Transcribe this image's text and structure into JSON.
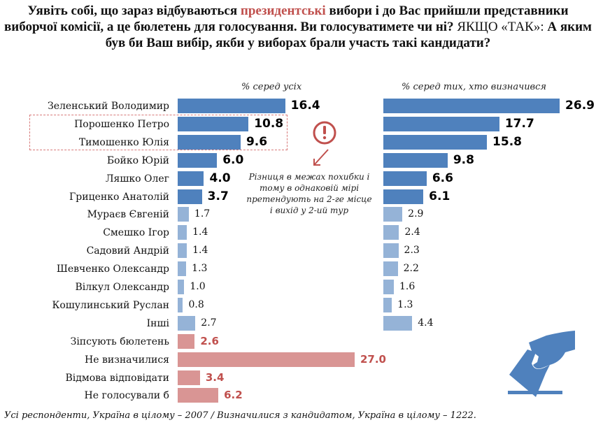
{
  "title": {
    "part1": "Уявіть собі, що зараз відбуваються ",
    "accent": "президентські",
    "part2": " вибори і до Вас прийшли представники виборчої комісії, а це бюлетень для голосування. Ви голосуватимете чи ні? ",
    "plain": "ЯКЩО «ТАК»:",
    "part3": " А яким був би Ваш вибір, якби у виборах брали участь такі кандидати?"
  },
  "annotation": {
    "note": "Різниця в межах похибки і тому в однаковій мірі претендують на 2-ге місце і вихід у 2-ий тур",
    "icon": "exclamation-circle-icon"
  },
  "footer": "Усі респонденти, Україна в цілому – 2007 / Визначилися з кандидатом, Україна в цілому – 1222.",
  "decor_icon": "ballot-box-hand-icon",
  "colors": {
    "leader": "#4f81bd",
    "minor": "#95b3d7",
    "other": "#d99594",
    "accent": "#c0504d"
  },
  "chart_data": [
    {
      "type": "bar",
      "orientation": "horizontal",
      "title": "% серед усіх",
      "xlim": [
        0,
        30
      ],
      "categories": [
        "Зеленський Володимир",
        "Порошенко Петро",
        "Тимошенко Юлія",
        "Бойко Юрій",
        "Ляшко Олег",
        "Гриценко Анатолій",
        "Мураєв Євгеній",
        "Смешко Ігор",
        "Садовий Андрій",
        "Шевченко Олександр",
        "Вілкул Олександр",
        "Кошулинський Руслан",
        "Інші",
        "Зіпсують бюлетень",
        "Не визначилися",
        "Відмова відповідати",
        "Не голосували б"
      ],
      "values": [
        16.4,
        10.8,
        9.6,
        6.0,
        4.0,
        3.7,
        1.7,
        1.4,
        1.4,
        1.3,
        1.0,
        0.8,
        2.7,
        2.6,
        27.0,
        3.4,
        6.2
      ],
      "labels": [
        "16.4",
        "10.8",
        "9.6",
        "6.0",
        "4.0",
        "3.7",
        "1.7",
        "1.4",
        "1.4",
        "1.3",
        "1.0",
        "0.8",
        "2.7",
        "2.6",
        "27.0",
        "3.4",
        "6.2"
      ],
      "groups": [
        "leader",
        "leader",
        "leader",
        "leader",
        "leader",
        "leader",
        "minor",
        "minor",
        "minor",
        "minor",
        "minor",
        "minor",
        "minor",
        "other",
        "other",
        "other",
        "other"
      ],
      "highlighted": [
        "Порошенко Петро",
        "Тимошенко Юлія"
      ]
    },
    {
      "type": "bar",
      "orientation": "horizontal",
      "title": "% серед тих, хто визначився",
      "xlim": [
        0,
        30
      ],
      "categories": [
        "Зеленський Володимир",
        "Порошенко Петро",
        "Тимошенко Юлія",
        "Бойко Юрій",
        "Ляшко Олег",
        "Гриценко Анатолій",
        "Мураєв Євгеній",
        "Смешко Ігор",
        "Садовий Андрій",
        "Шевченко Олександр",
        "Вілкул Олександр",
        "Кошулинський Руслан",
        "Інші"
      ],
      "values": [
        26.9,
        17.7,
        15.8,
        9.8,
        6.6,
        6.1,
        2.9,
        2.4,
        2.3,
        2.2,
        1.6,
        1.3,
        4.4
      ],
      "labels": [
        "26.9",
        "17.7",
        "15.8",
        "9.8",
        "6.6",
        "6.1",
        "2.9",
        "2.4",
        "2.3",
        "2.2",
        "1.6",
        "1.3",
        "4.4"
      ],
      "groups": [
        "leader",
        "leader",
        "leader",
        "leader",
        "leader",
        "leader",
        "minor",
        "minor",
        "minor",
        "minor",
        "minor",
        "minor",
        "minor"
      ]
    }
  ]
}
